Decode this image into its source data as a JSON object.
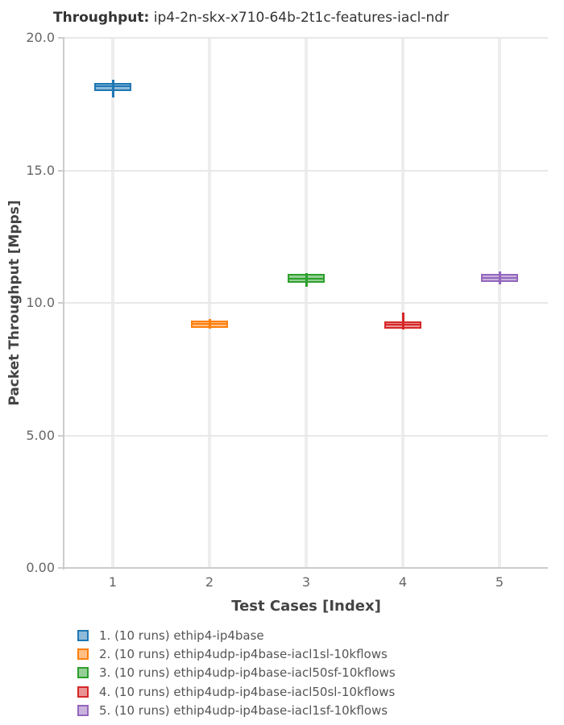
{
  "title": {
    "bold": "Throughput:",
    "rest": " ip4-2n-skx-x710-64b-2t1c-features-iacl-ndr"
  },
  "chart_data": {
    "type": "box",
    "title": "Throughput: ip4-2n-skx-x710-64b-2t1c-features-iacl-ndr",
    "xlabel": "Test Cases [Index]",
    "ylabel": "Packet Throughput [Mpps]",
    "ylim": [
      0,
      20
    ],
    "grid": true,
    "legend_position": "bottom-left",
    "y_ticks": [
      {
        "value": 20,
        "label": "20.0"
      },
      {
        "value": 15,
        "label": "15.0"
      },
      {
        "value": 10,
        "label": "10.0"
      },
      {
        "value": 5,
        "label": "5.00"
      },
      {
        "value": 0,
        "label": "0.00"
      }
    ],
    "x_ticks": [
      "1",
      "2",
      "3",
      "4",
      "5"
    ],
    "series": [
      {
        "x": 1,
        "label": "1. (10 runs) ethip4-ip4base",
        "runs": 10,
        "color": "#1f77b4",
        "low": 17.75,
        "q1": 18.0,
        "median": 18.17,
        "q3": 18.3,
        "high": 18.42
      },
      {
        "x": 2,
        "label": "2. (10 runs) ethip4udp-ip4base-iacl1sl-10kflows",
        "runs": 10,
        "color": "#ff7f0e",
        "low": 9.02,
        "q1": 9.06,
        "median": 9.22,
        "q3": 9.33,
        "high": 9.4
      },
      {
        "x": 3,
        "label": "3. (10 runs) ethip4udp-ip4base-iacl50sf-10kflows",
        "runs": 10,
        "color": "#2ca02c",
        "low": 10.6,
        "q1": 10.76,
        "median": 10.92,
        "q3": 11.1,
        "high": 11.12
      },
      {
        "x": 4,
        "label": "4. (10 runs) ethip4udp-ip4base-iacl50sl-10kflows",
        "runs": 10,
        "color": "#d62728",
        "low": 9.0,
        "q1": 9.03,
        "median": 9.17,
        "q3": 9.3,
        "high": 9.64
      },
      {
        "x": 5,
        "label": "5. (10 runs) ethip4udp-ip4base-iacl1sf-10kflows",
        "runs": 10,
        "color": "#9467bd",
        "low": 10.7,
        "q1": 10.78,
        "median": 10.95,
        "q3": 11.1,
        "high": 11.18
      }
    ]
  }
}
